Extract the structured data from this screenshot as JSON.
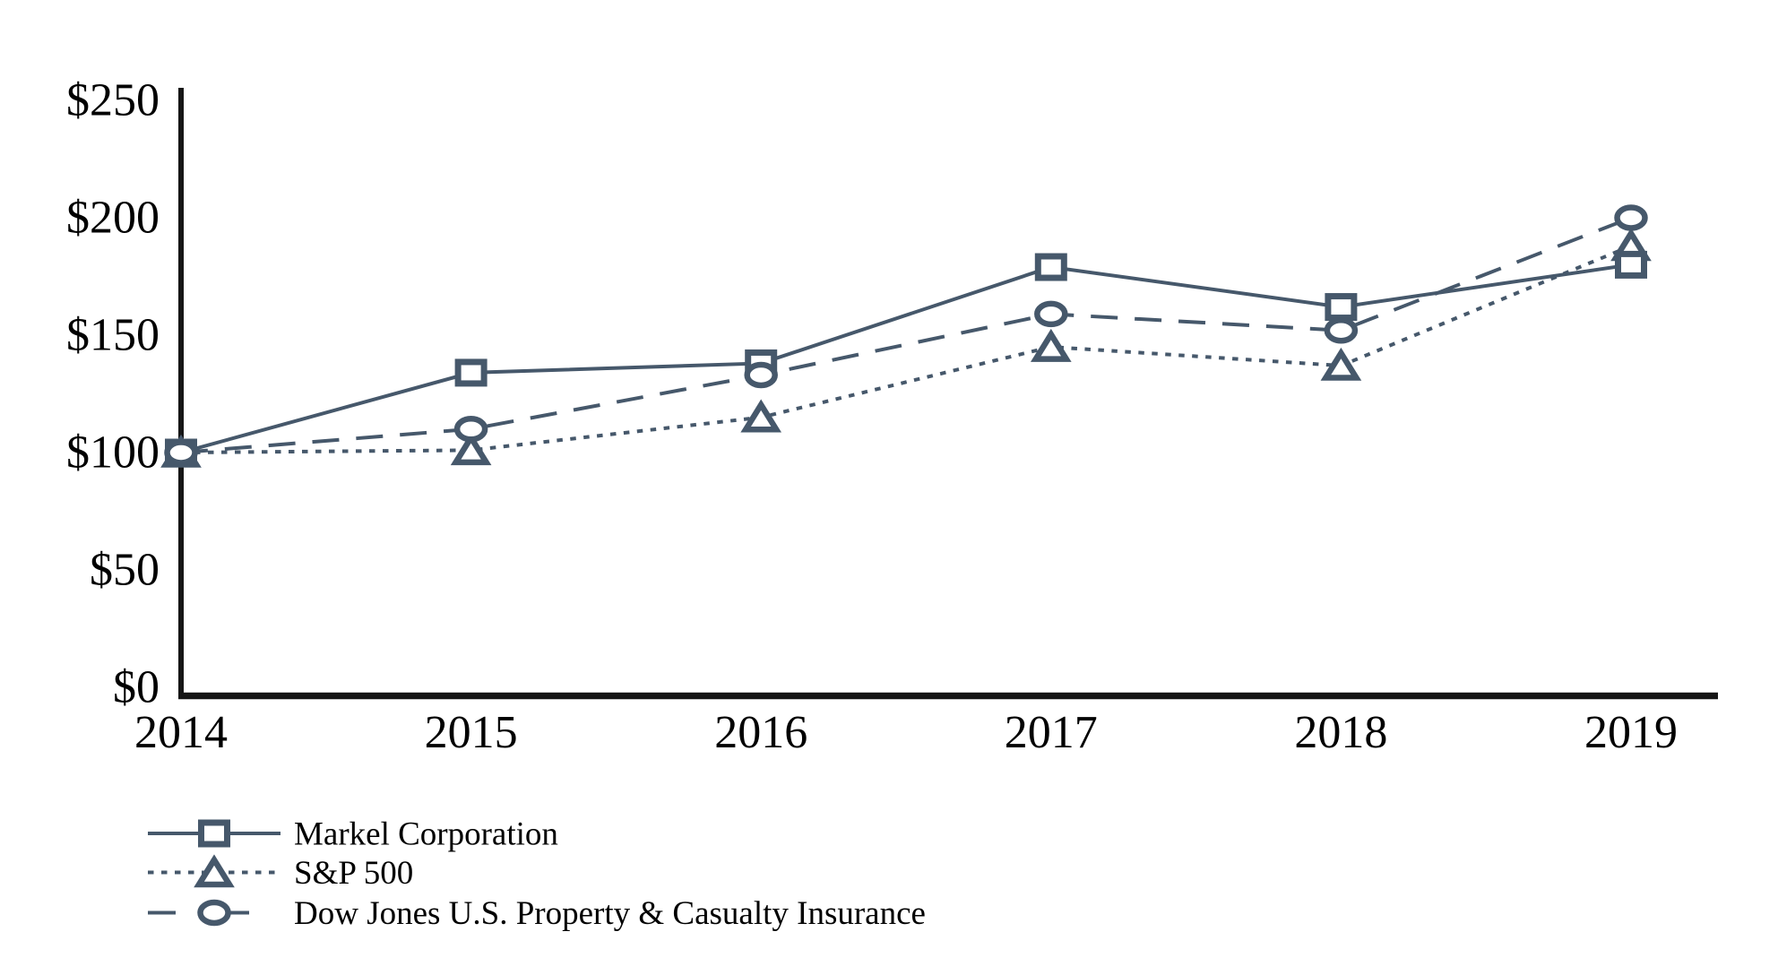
{
  "chart_data": {
    "type": "line",
    "title": "",
    "xlabel": "",
    "ylabel": "",
    "x": [
      "2014",
      "2015",
      "2016",
      "2017",
      "2018",
      "2019"
    ],
    "y_ticks": [
      {
        "label": "$0",
        "value": 0
      },
      {
        "label": "$50",
        "value": 50
      },
      {
        "label": "$100",
        "value": 100
      },
      {
        "label": "$150",
        "value": 150
      },
      {
        "label": "$200",
        "value": 200
      },
      {
        "label": "$250",
        "value": 250
      }
    ],
    "ylim": [
      0,
      250
    ],
    "grid": false,
    "legend_position": "bottom-left",
    "series": [
      {
        "name": "Markel Corporation",
        "marker": "square",
        "line_style": "solid",
        "values": [
          100,
          134,
          138,
          179,
          162,
          180
        ]
      },
      {
        "name": "S&P 500",
        "marker": "triangle",
        "line_style": "dotted",
        "values": [
          100,
          101,
          115,
          145,
          137,
          188
        ]
      },
      {
        "name": "Dow Jones U.S. Property & Casualty Insurance",
        "marker": "circle",
        "line_style": "dashed",
        "values": [
          100,
          110,
          133,
          159,
          152,
          200
        ]
      }
    ]
  },
  "colors": {
    "series_stroke": "#46586b",
    "marker_fill": "#ffffff",
    "axis": "#161616",
    "text": "#000000",
    "background": "#ffffff"
  }
}
